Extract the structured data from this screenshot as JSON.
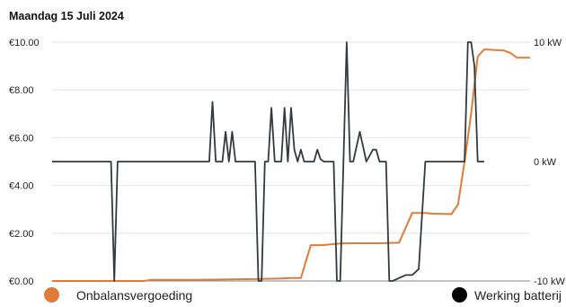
{
  "title": "Maandag 15 Juli 2024",
  "chart_data": {
    "type": "line",
    "left_axis": {
      "ticks": [
        "€0.00",
        "€2.00",
        "€4.00",
        "€6.00",
        "€8.00",
        "€10.00"
      ],
      "values": [
        0,
        2,
        4,
        6,
        8,
        10
      ],
      "ylim": [
        0,
        10
      ]
    },
    "right_axis": {
      "ticks": [
        "-10 kW",
        "0 kW",
        "10 kW"
      ],
      "values": [
        -10,
        0,
        10
      ],
      "ylim": [
        -10,
        10
      ]
    },
    "grid": true,
    "series": [
      {
        "name": "Onbalansvergoeding",
        "axis": "left",
        "color": "#e07b39",
        "points": [
          [
            0,
            0
          ],
          [
            14,
            0
          ],
          [
            15.2,
            0.05
          ],
          [
            22,
            0.05
          ],
          [
            31,
            0.08
          ],
          [
            35,
            0.1
          ],
          [
            36.3,
            0.12
          ],
          [
            38,
            0.12
          ],
          [
            39.5,
            1.5
          ],
          [
            41,
            1.5
          ],
          [
            42,
            1.52
          ],
          [
            44,
            1.57
          ],
          [
            46,
            1.58
          ],
          [
            50,
            1.58
          ],
          [
            53,
            1.6
          ],
          [
            55,
            2.85
          ],
          [
            57,
            2.85
          ],
          [
            58,
            2.82
          ],
          [
            61,
            2.8
          ],
          [
            62,
            3.2
          ],
          [
            63,
            5.0
          ],
          [
            64,
            7.0
          ],
          [
            65,
            9.4
          ],
          [
            66,
            9.7
          ],
          [
            69,
            9.65
          ],
          [
            70,
            9.55
          ],
          [
            71,
            9.35
          ],
          [
            73,
            9.35
          ]
        ]
      },
      {
        "name": "Werking batterij",
        "axis": "right",
        "color": "#333a3f",
        "points": [
          [
            0,
            0
          ],
          [
            9,
            0
          ],
          [
            9.5,
            -10
          ],
          [
            10,
            0
          ],
          [
            24,
            0
          ],
          [
            24.5,
            5
          ],
          [
            25,
            0
          ],
          [
            26,
            0
          ],
          [
            26.5,
            2.5
          ],
          [
            27,
            0
          ],
          [
            27.5,
            2.5
          ],
          [
            28,
            0
          ],
          [
            31,
            0
          ],
          [
            31.5,
            -10
          ],
          [
            32,
            -10
          ],
          [
            32.5,
            0
          ],
          [
            33,
            0
          ],
          [
            33.5,
            4.5
          ],
          [
            34,
            0
          ],
          [
            35,
            0
          ],
          [
            35.5,
            4.5
          ],
          [
            36,
            0
          ],
          [
            36.5,
            4.5
          ],
          [
            37,
            1
          ],
          [
            37.5,
            0
          ],
          [
            38,
            1
          ],
          [
            38.5,
            0
          ],
          [
            40,
            0
          ],
          [
            40.5,
            1
          ],
          [
            41,
            0.2
          ],
          [
            41.5,
            0
          ],
          [
            43,
            0
          ],
          [
            43.5,
            -10
          ],
          [
            44,
            -10
          ],
          [
            44.5,
            0
          ],
          [
            45,
            10
          ],
          [
            45.5,
            0
          ],
          [
            46,
            0
          ],
          [
            47,
            2.5
          ],
          [
            48,
            0
          ],
          [
            49,
            1
          ],
          [
            49.5,
            1
          ],
          [
            50,
            0
          ],
          [
            51,
            0
          ],
          [
            51.5,
            -10
          ],
          [
            52,
            -10
          ],
          [
            54,
            -9.5
          ],
          [
            55,
            -9.5
          ],
          [
            56,
            -9
          ],
          [
            57,
            0
          ],
          [
            63,
            0
          ],
          [
            63.5,
            10
          ],
          [
            64,
            10
          ],
          [
            64.5,
            8
          ],
          [
            65,
            0
          ],
          [
            66,
            0
          ]
        ]
      }
    ],
    "legend": [
      "Onbalansvergoeding",
      "Werking batterij"
    ],
    "legend_placement": "bottom"
  }
}
